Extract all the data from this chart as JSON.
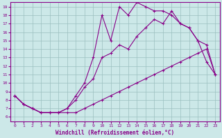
{
  "xlabel": "Windchill (Refroidissement éolien,°C)",
  "bg_color": "#cce8e8",
  "line_color": "#880088",
  "xlim": [
    -0.5,
    23.5
  ],
  "ylim": [
    5.5,
    19.5
  ],
  "xticks": [
    0,
    1,
    2,
    3,
    4,
    5,
    6,
    7,
    8,
    9,
    10,
    11,
    12,
    13,
    14,
    15,
    16,
    17,
    18,
    19,
    20,
    21,
    22,
    23
  ],
  "yticks": [
    6,
    7,
    8,
    9,
    10,
    11,
    12,
    13,
    14,
    15,
    16,
    17,
    18,
    19
  ],
  "line_straight_x": [
    0,
    1,
    2,
    3,
    4,
    5,
    6,
    7,
    8,
    9,
    10,
    11,
    12,
    13,
    14,
    15,
    16,
    17,
    18,
    19,
    20,
    21,
    22,
    23
  ],
  "line_straight_y": [
    8.5,
    7.5,
    7.0,
    6.5,
    6.5,
    6.5,
    6.5,
    6.5,
    7.0,
    7.5,
    8.0,
    8.5,
    9.0,
    9.5,
    10.0,
    10.5,
    11.0,
    11.5,
    12.0,
    12.5,
    13.0,
    13.5,
    14.0,
    11.0
  ],
  "line_mid_x": [
    0,
    1,
    2,
    3,
    4,
    5,
    6,
    7,
    8,
    9,
    10,
    11,
    12,
    13,
    14,
    15,
    16,
    17,
    18,
    19,
    20,
    21,
    22,
    23
  ],
  "line_mid_y": [
    8.5,
    7.5,
    7.0,
    6.5,
    6.5,
    6.5,
    7.0,
    8.0,
    9.5,
    10.5,
    13.0,
    13.5,
    14.5,
    14.0,
    15.5,
    16.5,
    17.5,
    17.0,
    18.5,
    17.0,
    16.5,
    15.0,
    14.5,
    11.0
  ],
  "line_jagged_x": [
    0,
    1,
    2,
    3,
    4,
    5,
    6,
    7,
    8,
    9,
    10,
    11,
    12,
    13,
    14,
    15,
    16,
    17,
    18,
    19,
    20,
    21,
    22,
    23
  ],
  "line_jagged_y": [
    8.5,
    7.5,
    7.0,
    6.5,
    6.5,
    6.5,
    7.0,
    8.5,
    10.0,
    13.0,
    18.0,
    15.0,
    19.0,
    18.0,
    19.5,
    19.0,
    18.5,
    18.5,
    18.0,
    17.0,
    16.5,
    15.0,
    12.5,
    11.0
  ]
}
